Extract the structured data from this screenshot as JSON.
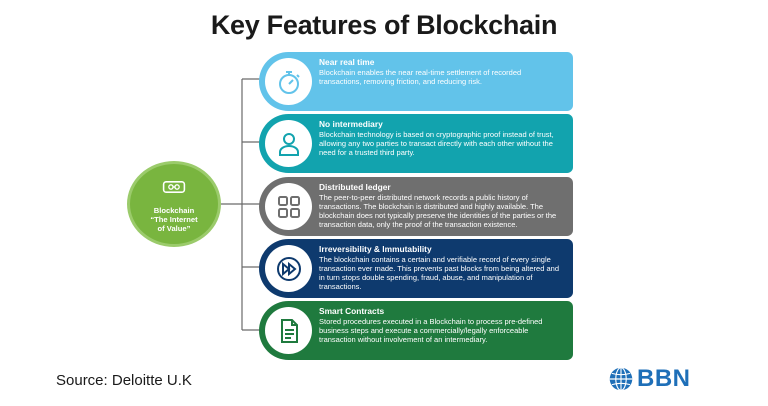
{
  "title": "Key Features of Blockchain",
  "hub": {
    "line1": "Blockchain",
    "line2": "“The Internet",
    "line3": "of Value”",
    "icon": "chain-link-icon"
  },
  "features": [
    {
      "title": "Near real time",
      "text": "Blockchain enables the near real-time settlement of recorded transactions, removing friction, and reducing risk.",
      "icon": "stopwatch-icon",
      "color": "#62c3ea"
    },
    {
      "title": "No intermediary",
      "text": "Blockchain technology is based on cryptographic proof instead of trust, allowing any two parties to transact directly with each other without the need for a trusted third party.",
      "icon": "person-icon",
      "color": "#12a3ae"
    },
    {
      "title": "Distributed ledger",
      "text": "The peer-to-peer distributed network records a public history of transactions. The blockchain is distributed and highly available. The blockchain does not typically preserve the identities of the parties or the transaction data, only the proof of the transaction existence.",
      "icon": "grid-squares-icon",
      "color": "#6f6f6f"
    },
    {
      "title": "Irreversibility & Immutability",
      "text": "The blockchain contains a certain and verifiable record of every single transaction ever made. This prevents past blocks from being altered and in turn stops double spending, fraud, abuse, and manipulation of transactions.",
      "icon": "fast-forward-icon",
      "color": "#0e3a6e"
    },
    {
      "title": "Smart Contracts",
      "text": "Stored procedures executed in a Blockchain to process pre-defined business steps and execute a commercially/legally enforceable transaction without involvement of an intermediary.",
      "icon": "document-icon",
      "color": "#1f7a3e"
    }
  ],
  "source": "Source: Deloitte U.K",
  "brand": {
    "name": "BBN",
    "icon": "globe-icon",
    "color": "#1e6fb8"
  }
}
